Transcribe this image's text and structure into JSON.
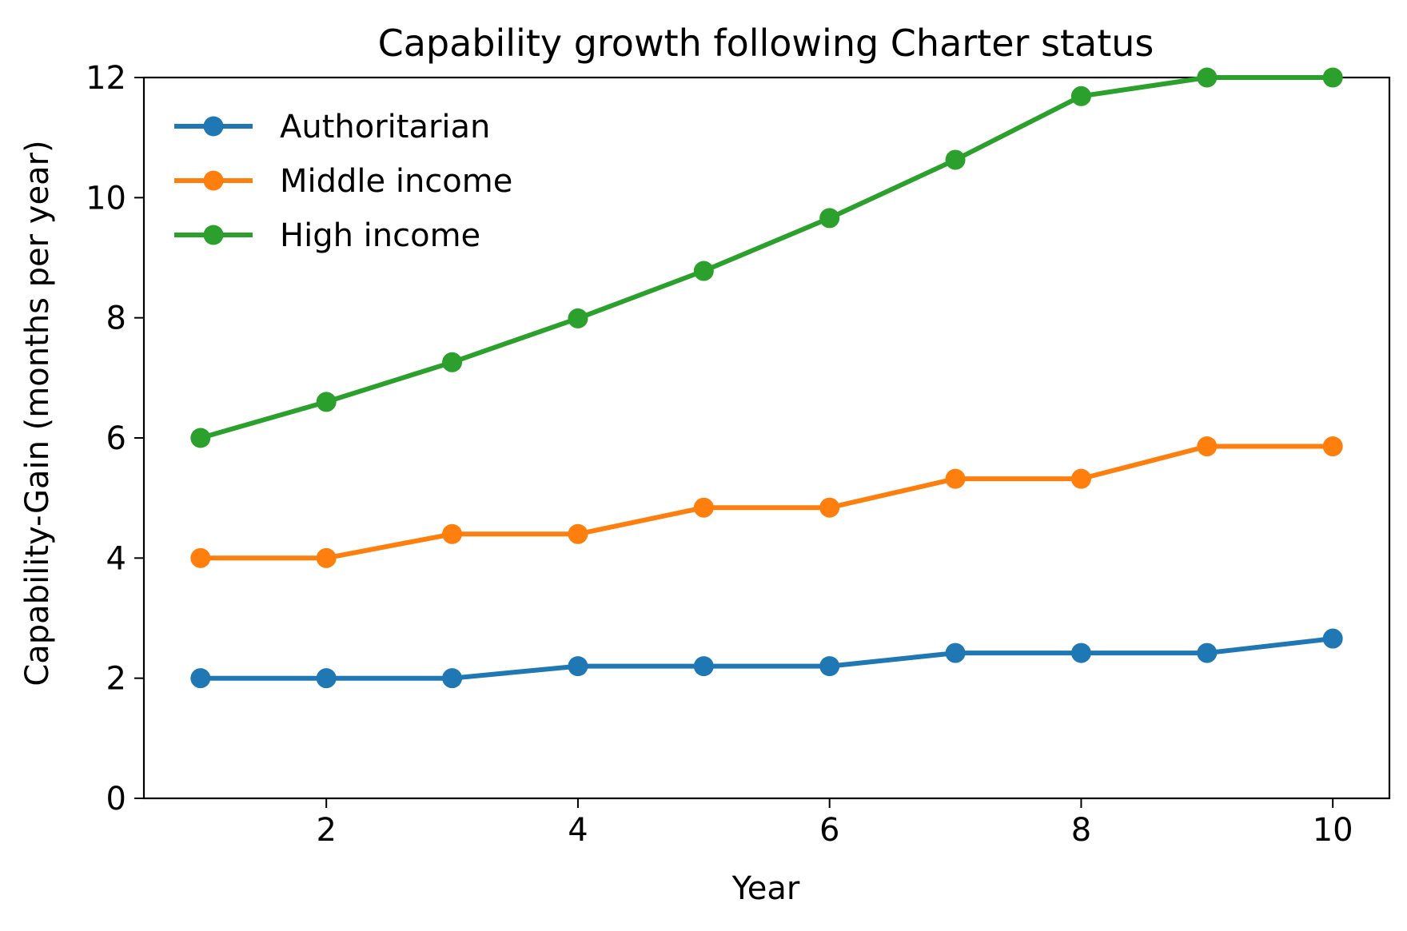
{
  "chart_data": {
    "type": "line",
    "title": "Capability growth following Charter status",
    "xlabel": "Year",
    "ylabel": "Capability-Gain (months per year)",
    "xlim": [
      0.55,
      10.45
    ],
    "ylim": [
      0,
      12
    ],
    "xticks": [
      2,
      4,
      6,
      8,
      10
    ],
    "yticks": [
      0,
      2,
      4,
      6,
      8,
      10,
      12
    ],
    "grid": false,
    "legend_position": "top-left",
    "x": [
      1,
      2,
      3,
      4,
      5,
      6,
      7,
      8,
      9,
      10
    ],
    "series": [
      {
        "name": "Authoritarian",
        "color": "#1f77b4",
        "values": [
          2.0,
          2.0,
          2.0,
          2.2,
          2.2,
          2.2,
          2.42,
          2.42,
          2.42,
          2.66
        ]
      },
      {
        "name": "Middle income",
        "color": "#ff7f0e",
        "values": [
          4.0,
          4.0,
          4.4,
          4.4,
          4.84,
          4.84,
          5.32,
          5.32,
          5.86,
          5.86
        ]
      },
      {
        "name": "High income",
        "color": "#2ca02c",
        "values": [
          6.0,
          6.6,
          7.26,
          7.99,
          8.78,
          9.66,
          10.63,
          11.69,
          12.0,
          12.0
        ]
      }
    ]
  }
}
